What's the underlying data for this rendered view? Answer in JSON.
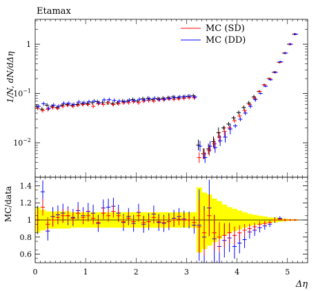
{
  "chart_data": [
    {
      "type": "scatter",
      "title": "Etamax",
      "ylabel": "1/N, dN/dΔη",
      "xlabel": "",
      "yscale": "log",
      "xlim": [
        0,
        5.4
      ],
      "ylim": [
        0.002,
        3.2
      ],
      "yticks": [
        {
          "value": 0.01,
          "base": "10",
          "exp": "−2"
        },
        {
          "value": 0.1,
          "base": "10",
          "exp": "−1"
        },
        {
          "value": 1,
          "base": "1",
          "exp": ""
        }
      ],
      "legend": {
        "position": "top-right",
        "entries": [
          "MC (SD)",
          "MC (DD)"
        ]
      },
      "colors": {
        "data": "#000000",
        "sd": "#ff0000",
        "dd": "#0000ff"
      },
      "x": [
        0.05,
        0.15,
        0.25,
        0.35,
        0.45,
        0.55,
        0.65,
        0.75,
        0.85,
        0.95,
        1.05,
        1.15,
        1.25,
        1.35,
        1.45,
        1.55,
        1.65,
        1.75,
        1.85,
        1.95,
        2.05,
        2.15,
        2.25,
        2.35,
        2.45,
        2.55,
        2.65,
        2.75,
        2.85,
        2.95,
        3.05,
        3.15,
        3.25,
        3.35,
        3.45,
        3.55,
        3.65,
        3.75,
        3.85,
        3.95,
        4.05,
        4.15,
        4.25,
        4.35,
        4.45,
        4.55,
        4.65,
        4.75,
        4.85,
        4.95,
        5.05,
        5.15
      ],
      "series": [
        {
          "name": "",
          "values": [
            0.055,
            0.048,
            0.058,
            0.055,
            0.052,
            0.058,
            0.06,
            0.058,
            0.06,
            0.062,
            0.062,
            0.065,
            0.068,
            0.065,
            0.065,
            0.062,
            0.065,
            0.07,
            0.07,
            0.075,
            0.07,
            0.078,
            0.08,
            0.075,
            0.078,
            0.08,
            0.082,
            0.085,
            0.082,
            0.085,
            0.088,
            0.09,
            0.009,
            0.006,
            0.0075,
            0.0105,
            0.016,
            0.02,
            0.024,
            0.032,
            0.041,
            0.052,
            0.064,
            0.085,
            0.11,
            0.15,
            0.2,
            0.27,
            0.43,
            0.66,
            1.0,
            1.6
          ]
        },
        {
          "name": "MC (SD)",
          "values": [
            0.05,
            0.045,
            0.048,
            0.052,
            0.05,
            0.055,
            0.058,
            0.055,
            0.058,
            0.06,
            0.06,
            0.055,
            0.062,
            0.06,
            0.065,
            0.06,
            0.062,
            0.065,
            0.065,
            0.068,
            0.065,
            0.07,
            0.072,
            0.07,
            0.075,
            0.075,
            0.078,
            0.076,
            0.078,
            0.08,
            0.082,
            0.082,
            0.005,
            0.006,
            0.007,
            0.0095,
            0.013,
            0.017,
            0.02,
            0.028,
            0.035,
            0.045,
            0.06,
            0.08,
            0.11,
            0.15,
            0.2,
            0.27,
            0.43,
            0.66,
            1.0,
            1.6
          ]
        },
        {
          "name": "MC (DD)",
          "values": [
            0.055,
            0.062,
            0.05,
            0.058,
            0.055,
            0.063,
            0.063,
            0.06,
            0.067,
            0.065,
            0.068,
            0.07,
            0.065,
            0.074,
            0.075,
            0.072,
            0.07,
            0.068,
            0.073,
            0.072,
            0.076,
            0.074,
            0.078,
            0.08,
            0.076,
            0.077,
            0.08,
            0.083,
            0.085,
            0.086,
            0.088,
            0.085,
            0.0085,
            0.005,
            0.0085,
            0.008,
            0.011,
            0.013,
            0.019,
            0.022,
            0.03,
            0.04,
            0.055,
            0.075,
            0.1,
            0.14,
            0.19,
            0.27,
            0.44,
            0.66,
            1.0,
            1.6
          ]
        }
      ]
    },
    {
      "type": "scatter",
      "ylabel": "MC/data",
      "xlabel": "Δη",
      "xlim": [
        0,
        5.4
      ],
      "ylim": [
        0.5,
        1.5
      ],
      "xticks": [
        "0",
        "1",
        "2",
        "3",
        "4",
        "5"
      ],
      "yticks": [
        "0.6",
        "0.8",
        "1",
        "1.2",
        "1.4"
      ],
      "colors": {
        "band": "#ffff00"
      },
      "band": [
        [
          0.85,
          1.15
        ],
        [
          0.88,
          1.12
        ],
        [
          0.9,
          1.1
        ],
        [
          0.9,
          1.1
        ],
        [
          0.9,
          1.1
        ],
        [
          0.9,
          1.1
        ],
        [
          0.9,
          1.1
        ],
        [
          0.91,
          1.09
        ],
        [
          0.91,
          1.09
        ],
        [
          0.91,
          1.09
        ],
        [
          0.91,
          1.09
        ],
        [
          0.91,
          1.09
        ],
        [
          0.91,
          1.09
        ],
        [
          0.91,
          1.09
        ],
        [
          0.91,
          1.09
        ],
        [
          0.91,
          1.09
        ],
        [
          0.91,
          1.09
        ],
        [
          0.91,
          1.09
        ],
        [
          0.91,
          1.09
        ],
        [
          0.91,
          1.09
        ],
        [
          0.91,
          1.09
        ],
        [
          0.91,
          1.09
        ],
        [
          0.91,
          1.09
        ],
        [
          0.91,
          1.09
        ],
        [
          0.91,
          1.09
        ],
        [
          0.91,
          1.09
        ],
        [
          0.91,
          1.09
        ],
        [
          0.91,
          1.09
        ],
        [
          0.91,
          1.09
        ],
        [
          0.91,
          1.09
        ],
        [
          0.91,
          1.09
        ],
        [
          0.91,
          1.09
        ],
        [
          0.62,
          1.38
        ],
        [
          0.66,
          1.32
        ],
        [
          0.7,
          1.3
        ],
        [
          0.74,
          1.25
        ],
        [
          0.78,
          1.22
        ],
        [
          0.82,
          1.18
        ],
        [
          0.85,
          1.15
        ],
        [
          0.87,
          1.13
        ],
        [
          0.89,
          1.11
        ],
        [
          0.91,
          1.09
        ],
        [
          0.93,
          1.07
        ],
        [
          0.94,
          1.06
        ],
        [
          0.95,
          1.05
        ],
        [
          0.96,
          1.04
        ],
        [
          0.97,
          1.03
        ],
        [
          0.97,
          1.03
        ],
        [
          0.98,
          1.02
        ],
        [
          0.985,
          1.015
        ],
        [
          0.99,
          1.01
        ],
        [
          0.99,
          1.01
        ]
      ],
      "series": [
        {
          "name": "MC (DD)",
          "values": [
            1.0,
            1.33,
            0.87,
            1.04,
            1.06,
            1.08,
            1.05,
            1.03,
            1.11,
            1.05,
            1.1,
            1.08,
            0.96,
            1.14,
            1.15,
            1.16,
            1.08,
            0.97,
            1.04,
            0.96,
            1.09,
            0.95,
            0.98,
            1.07,
            0.97,
            0.96,
            0.98,
            1.02,
            1.04,
            1.01,
            1.0,
            0.94,
            0.94,
            0.8,
            1.14,
            0.78,
            0.69,
            0.76,
            0.79,
            0.69,
            0.73,
            0.77,
            0.86,
            0.88,
            0.91,
            0.93,
            0.95,
            1.0,
            1.02,
            1.0,
            1.0,
            1.0
          ]
        },
        {
          "name": "MC (SD)",
          "values": [
            1.0,
            1.15,
            0.95,
            1.0,
            1.03,
            1.05,
            1.05,
            1.02,
            1.08,
            1.03,
            1.05,
            1.02,
            0.97,
            1.08,
            1.05,
            1.1,
            1.05,
            0.98,
            1.02,
            0.98,
            1.05,
            0.97,
            0.98,
            1.03,
            0.98,
            0.97,
            0.98,
            1.0,
            1.01,
            1.0,
            1.0,
            0.97,
            0.92,
            0.85,
            1.05,
            0.85,
            0.8,
            0.82,
            0.85,
            0.82,
            0.85,
            0.88,
            0.9,
            0.92,
            0.95,
            0.96,
            0.97,
            1.0,
            1.01,
            1.0,
            1.0,
            1.0
          ]
        }
      ]
    }
  ]
}
